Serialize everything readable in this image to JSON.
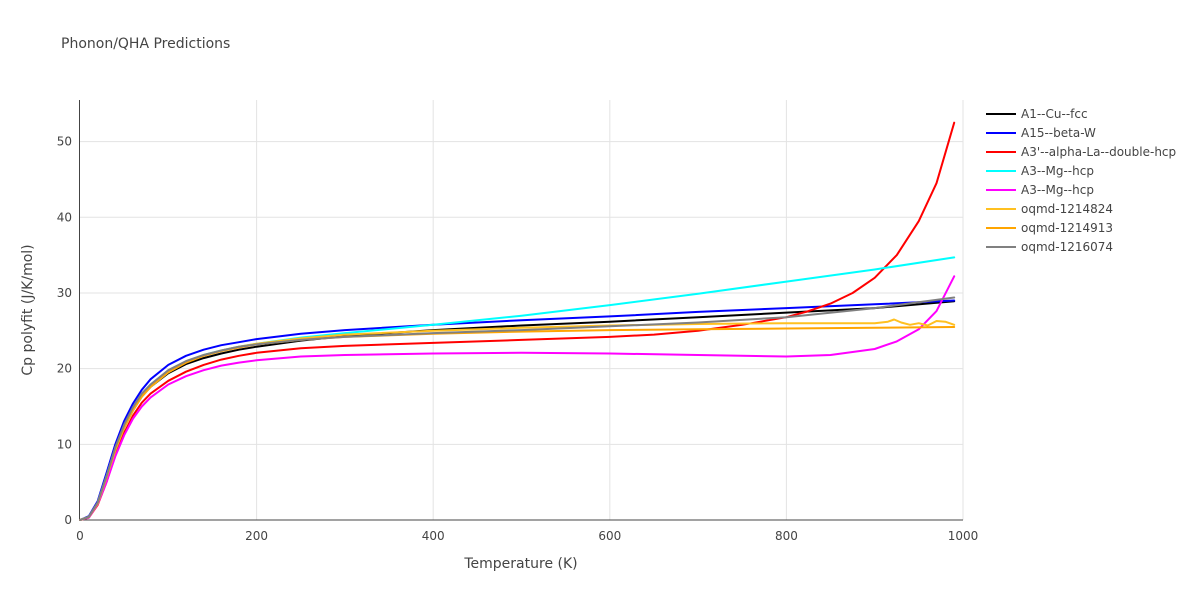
{
  "chart_data": {
    "type": "line",
    "title": "Phonon/QHA Predictions",
    "xlabel": "Temperature (K)",
    "ylabel": "Cp polyfit (J/K/mol)",
    "xlim": [
      0,
      1000
    ],
    "ylim": [
      0,
      55.5
    ],
    "xticks": [
      0,
      200,
      400,
      600,
      800,
      1000
    ],
    "yticks": [
      0,
      10,
      20,
      30,
      40,
      50
    ],
    "grid": true,
    "legend_position": "right",
    "series": [
      {
        "name": "A1--Cu--fcc",
        "color": "#000000",
        "x": [
          0,
          10,
          20,
          30,
          40,
          50,
          60,
          70,
          80,
          100,
          120,
          140,
          160,
          180,
          200,
          250,
          300,
          400,
          500,
          600,
          700,
          800,
          900,
          990
        ],
        "y": [
          0,
          0.4,
          2.2,
          5.5,
          9.2,
          12.2,
          14.5,
          16.3,
          17.6,
          19.4,
          20.6,
          21.4,
          22.0,
          22.5,
          22.9,
          23.7,
          24.3,
          25.1,
          25.7,
          26.2,
          26.8,
          27.4,
          28.0,
          28.9
        ]
      },
      {
        "name": "A15--beta-W",
        "color": "#0000ff",
        "x": [
          0,
          10,
          20,
          30,
          40,
          50,
          60,
          70,
          80,
          100,
          120,
          140,
          160,
          180,
          200,
          250,
          300,
          400,
          500,
          600,
          700,
          800,
          900,
          990
        ],
        "y": [
          0,
          0.5,
          2.5,
          6.2,
          10.0,
          13.1,
          15.4,
          17.2,
          18.6,
          20.5,
          21.7,
          22.5,
          23.1,
          23.5,
          23.9,
          24.6,
          25.1,
          25.8,
          26.4,
          26.9,
          27.5,
          28.0,
          28.5,
          29.0
        ]
      },
      {
        "name": "A3'--alpha-La--double-hcp",
        "color": "#ff0000",
        "x": [
          0,
          10,
          20,
          30,
          40,
          50,
          60,
          70,
          80,
          100,
          120,
          140,
          160,
          180,
          200,
          250,
          300,
          400,
          500,
          600,
          650,
          700,
          750,
          800,
          825,
          850,
          875,
          900,
          925,
          950,
          970,
          990
        ],
        "y": [
          0,
          0.3,
          2.0,
          5.0,
          8.6,
          11.5,
          13.8,
          15.5,
          16.7,
          18.4,
          19.6,
          20.5,
          21.2,
          21.7,
          22.1,
          22.7,
          23.0,
          23.4,
          23.8,
          24.2,
          24.5,
          25.0,
          25.8,
          26.8,
          27.6,
          28.6,
          30.0,
          32.0,
          35.0,
          39.5,
          44.5,
          52.5
        ]
      },
      {
        "name": "A3--Mg--hcp",
        "color": "#00ffff",
        "x": [
          0,
          10,
          20,
          30,
          40,
          50,
          60,
          70,
          80,
          100,
          120,
          140,
          160,
          180,
          200,
          250,
          300,
          400,
          500,
          600,
          700,
          800,
          900,
          990
        ],
        "y": [
          0,
          0.4,
          2.3,
          5.8,
          9.5,
          12.5,
          14.8,
          16.6,
          17.9,
          19.7,
          20.9,
          21.8,
          22.4,
          22.9,
          23.3,
          24.1,
          24.7,
          25.8,
          27.0,
          28.4,
          29.9,
          31.5,
          33.1,
          34.7
        ]
      },
      {
        "name": "A3--Mg--hcp",
        "color": "#ff00ff",
        "x": [
          0,
          10,
          20,
          30,
          40,
          50,
          60,
          70,
          80,
          100,
          120,
          140,
          160,
          180,
          200,
          250,
          300,
          400,
          500,
          600,
          700,
          800,
          850,
          900,
          925,
          950,
          970,
          990
        ],
        "y": [
          0,
          0.3,
          2.1,
          5.0,
          8.4,
          11.2,
          13.4,
          15.0,
          16.2,
          17.9,
          19.0,
          19.8,
          20.4,
          20.8,
          21.1,
          21.6,
          21.8,
          22.0,
          22.1,
          22.0,
          21.8,
          21.6,
          21.8,
          22.6,
          23.6,
          25.2,
          27.6,
          32.2
        ]
      },
      {
        "name": "oqmd-1214824",
        "color": "#ffc020",
        "x": [
          0,
          10,
          20,
          30,
          40,
          50,
          60,
          70,
          80,
          100,
          120,
          140,
          160,
          180,
          200,
          250,
          300,
          400,
          500,
          600,
          700,
          800,
          900,
          915,
          922,
          930,
          940,
          950,
          960,
          970,
          980,
          990
        ],
        "y": [
          0,
          0.4,
          2.2,
          5.6,
          9.2,
          12.2,
          14.5,
          16.3,
          17.6,
          19.5,
          20.8,
          21.7,
          22.4,
          22.9,
          23.3,
          24.0,
          24.5,
          25.0,
          25.4,
          25.7,
          25.9,
          26.0,
          26.0,
          26.2,
          26.5,
          26.1,
          25.8,
          26.0,
          25.7,
          26.3,
          26.2,
          25.8
        ]
      },
      {
        "name": "oqmd-1214913",
        "color": "#ffa500",
        "x": [
          0,
          10,
          20,
          30,
          40,
          50,
          60,
          70,
          80,
          100,
          120,
          140,
          160,
          180,
          200,
          250,
          300,
          400,
          500,
          600,
          700,
          800,
          900,
          990
        ],
        "y": [
          0,
          0.4,
          2.3,
          5.7,
          9.4,
          12.4,
          14.7,
          16.4,
          17.7,
          19.6,
          20.8,
          21.7,
          22.3,
          22.8,
          23.2,
          23.8,
          24.2,
          24.6,
          24.9,
          25.1,
          25.2,
          25.3,
          25.4,
          25.5
        ]
      },
      {
        "name": "oqmd-1216074",
        "color": "#808080",
        "x": [
          0,
          10,
          20,
          30,
          40,
          50,
          60,
          70,
          80,
          100,
          120,
          140,
          160,
          180,
          200,
          250,
          300,
          400,
          500,
          600,
          700,
          800,
          900,
          990
        ],
        "y": [
          0,
          0.4,
          2.3,
          5.8,
          9.6,
          12.6,
          14.9,
          16.7,
          17.9,
          19.8,
          21.0,
          21.8,
          22.4,
          22.9,
          23.2,
          23.8,
          24.2,
          24.7,
          25.1,
          25.6,
          26.1,
          26.8,
          28.0,
          29.4
        ]
      }
    ]
  }
}
